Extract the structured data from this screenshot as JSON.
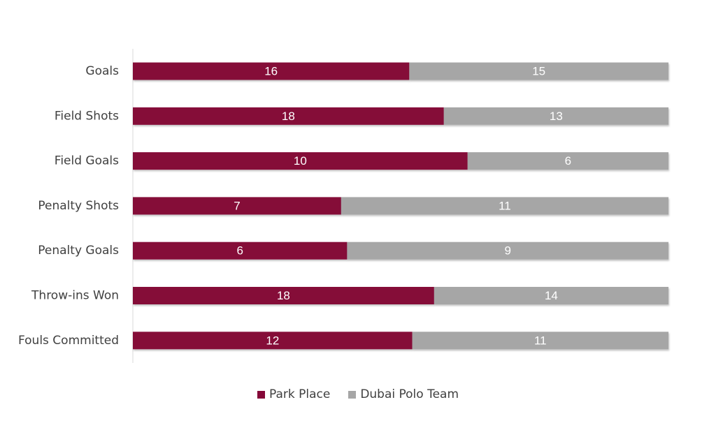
{
  "chart_data": {
    "type": "bar",
    "orientation": "horizontal",
    "stacked": true,
    "normalized": true,
    "categories": [
      "Goals",
      "Field Shots",
      "Field Goals",
      "Penalty Shots",
      "Penalty Goals",
      "Throw-ins Won",
      "Fouls Committed"
    ],
    "series": [
      {
        "name": "Park Place",
        "color": "#850838",
        "values": [
          16,
          18,
          10,
          7,
          6,
          18,
          12
        ]
      },
      {
        "name": "Dubai Polo Team",
        "color": "#a6a6a6",
        "values": [
          15,
          13,
          6,
          11,
          9,
          14,
          11
        ]
      }
    ],
    "legend_position": "bottom",
    "grid": false,
    "data_labels": true
  }
}
